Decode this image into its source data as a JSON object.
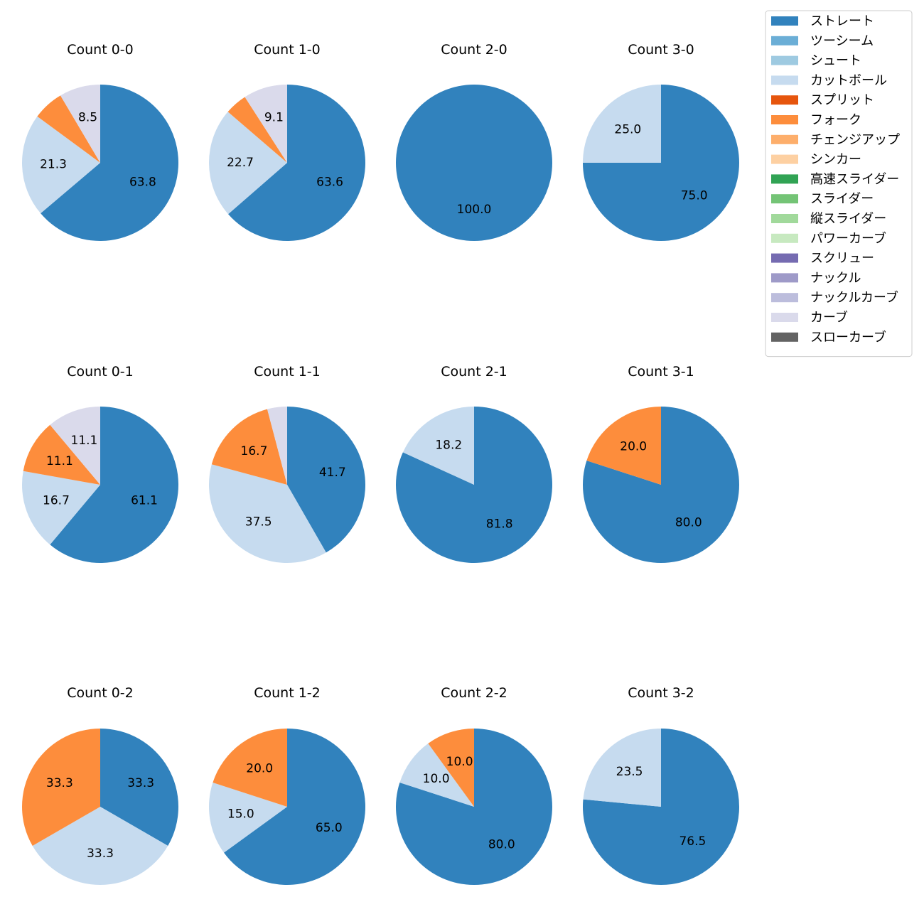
{
  "chart_data": {
    "type": "pie",
    "legend": {
      "placement": "top-right",
      "entries": [
        {
          "name": "ストレート",
          "color": "#3182bd"
        },
        {
          "name": "ツーシーム",
          "color": "#6baed6"
        },
        {
          "name": "シュート",
          "color": "#9ecae1"
        },
        {
          "name": "カットボール",
          "color": "#c6dbef"
        },
        {
          "name": "スプリット",
          "color": "#e6550d"
        },
        {
          "name": "フォーク",
          "color": "#fd8d3c"
        },
        {
          "name": "チェンジアップ",
          "color": "#fdae6b"
        },
        {
          "name": "シンカー",
          "color": "#fdd0a2"
        },
        {
          "name": "高速スライダー",
          "color": "#31a354"
        },
        {
          "name": "スライダー",
          "color": "#74c476"
        },
        {
          "name": "縦スライダー",
          "color": "#a1d99b"
        },
        {
          "name": "パワーカーブ",
          "color": "#c7e9c0"
        },
        {
          "name": "スクリュー",
          "color": "#756bb1"
        },
        {
          "name": "ナックル",
          "color": "#9e9ac8"
        },
        {
          "name": "ナックルカーブ",
          "color": "#bcbddc"
        },
        {
          "name": "カーブ",
          "color": "#dadaeb"
        },
        {
          "name": "スローカーブ",
          "color": "#636363"
        }
      ]
    },
    "pies": [
      {
        "title": "Count 0-0",
        "slices": [
          {
            "pitch": "ストレート",
            "value": 63.8,
            "label": "63.8"
          },
          {
            "pitch": "カットボール",
            "value": 21.3,
            "label": "21.3"
          },
          {
            "pitch": "フォーク",
            "value": 6.4,
            "label": ""
          },
          {
            "pitch": "カーブ",
            "value": 8.5,
            "label": "8.5"
          }
        ]
      },
      {
        "title": "Count 1-0",
        "slices": [
          {
            "pitch": "ストレート",
            "value": 63.6,
            "label": "63.6"
          },
          {
            "pitch": "カットボール",
            "value": 22.7,
            "label": "22.7"
          },
          {
            "pitch": "フォーク",
            "value": 4.6,
            "label": ""
          },
          {
            "pitch": "カーブ",
            "value": 9.1,
            "label": "9.1"
          }
        ]
      },
      {
        "title": "Count 2-0",
        "slices": [
          {
            "pitch": "ストレート",
            "value": 100.0,
            "label": "100.0"
          }
        ]
      },
      {
        "title": "Count 3-0",
        "slices": [
          {
            "pitch": "ストレート",
            "value": 75.0,
            "label": "75.0"
          },
          {
            "pitch": "カットボール",
            "value": 25.0,
            "label": "25.0"
          }
        ]
      },
      {
        "title": "Count 0-1",
        "slices": [
          {
            "pitch": "ストレート",
            "value": 61.1,
            "label": "61.1"
          },
          {
            "pitch": "カットボール",
            "value": 16.7,
            "label": "16.7"
          },
          {
            "pitch": "フォーク",
            "value": 11.1,
            "label": "11.1"
          },
          {
            "pitch": "カーブ",
            "value": 11.1,
            "label": "11.1"
          }
        ]
      },
      {
        "title": "Count 1-1",
        "slices": [
          {
            "pitch": "ストレート",
            "value": 41.7,
            "label": "41.7"
          },
          {
            "pitch": "カットボール",
            "value": 37.5,
            "label": "37.5"
          },
          {
            "pitch": "フォーク",
            "value": 16.7,
            "label": "16.7"
          },
          {
            "pitch": "カーブ",
            "value": 4.1,
            "label": ""
          }
        ]
      },
      {
        "title": "Count 2-1",
        "slices": [
          {
            "pitch": "ストレート",
            "value": 81.8,
            "label": "81.8"
          },
          {
            "pitch": "カットボール",
            "value": 18.2,
            "label": "18.2"
          }
        ]
      },
      {
        "title": "Count 3-1",
        "slices": [
          {
            "pitch": "ストレート",
            "value": 80.0,
            "label": "80.0"
          },
          {
            "pitch": "フォーク",
            "value": 20.0,
            "label": "20.0"
          }
        ]
      },
      {
        "title": "Count 0-2",
        "slices": [
          {
            "pitch": "ストレート",
            "value": 33.3,
            "label": "33.3"
          },
          {
            "pitch": "カットボール",
            "value": 33.3,
            "label": "33.3"
          },
          {
            "pitch": "フォーク",
            "value": 33.3,
            "label": "33.3"
          }
        ]
      },
      {
        "title": "Count 1-2",
        "slices": [
          {
            "pitch": "ストレート",
            "value": 65.0,
            "label": "65.0"
          },
          {
            "pitch": "カットボール",
            "value": 15.0,
            "label": "15.0"
          },
          {
            "pitch": "フォーク",
            "value": 20.0,
            "label": "20.0"
          }
        ]
      },
      {
        "title": "Count 2-2",
        "slices": [
          {
            "pitch": "ストレート",
            "value": 80.0,
            "label": "80.0"
          },
          {
            "pitch": "カットボール",
            "value": 10.0,
            "label": "10.0"
          },
          {
            "pitch": "フォーク",
            "value": 10.0,
            "label": "10.0"
          }
        ]
      },
      {
        "title": "Count 3-2",
        "slices": [
          {
            "pitch": "ストレート",
            "value": 76.5,
            "label": "76.5"
          },
          {
            "pitch": "カットボール",
            "value": 23.5,
            "label": "23.5"
          }
        ]
      }
    ]
  }
}
